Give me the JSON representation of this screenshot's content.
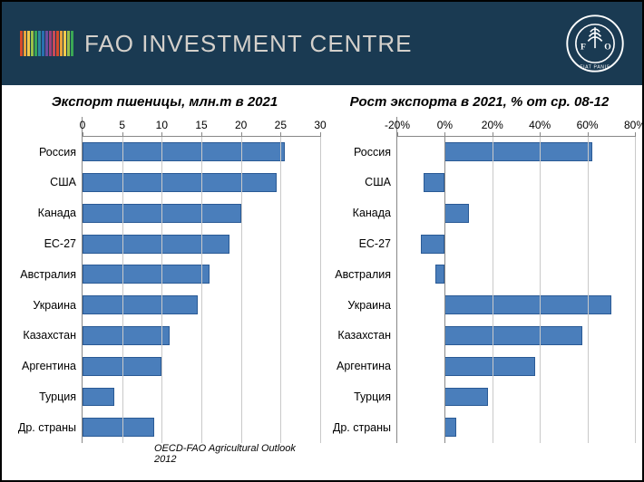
{
  "header": {
    "title": "FAO INVESTMENT CENTRE",
    "bg_color": "#1a3a52",
    "title_color": "#d4d0cb",
    "stripe_colors": [
      "#d64a2a",
      "#e8a33c",
      "#f2c94c",
      "#9ac148",
      "#3aa655",
      "#2b8aa0",
      "#2a6fb0",
      "#6a4fa0",
      "#a0407a",
      "#c94a5a",
      "#d64a2a",
      "#e8a33c",
      "#f2c94c",
      "#9ac148",
      "#3aa655"
    ]
  },
  "chart_left": {
    "type": "bar-horizontal",
    "title": "Экспорт пшеницы, млн.т в 2021",
    "xmin": 0,
    "xmax": 30,
    "xstep": 5,
    "categories": [
      "Россия",
      "США",
      "Канада",
      "ЕС-27",
      "Австралия",
      "Украина",
      "Казахстан",
      "Аргентина",
      "Турция",
      "Др. страны"
    ],
    "values": [
      25.5,
      24.5,
      20,
      18.5,
      16,
      14.5,
      11,
      10,
      4,
      9
    ],
    "bar_color": "#4a7ebb",
    "bar_border": "#2a5a95",
    "grid_color": "#c9c9c9",
    "title_fontsize": 15,
    "label_fontsize": 12.5,
    "tick_fontsize": 12
  },
  "chart_right": {
    "type": "bar-horizontal",
    "title": "Рост экспорта в 2021, % от ср. 08-12",
    "xmin": -20,
    "xmax": 80,
    "xstep": 20,
    "tick_suffix": "%",
    "zero_baseline": true,
    "categories": [
      "Россия",
      "США",
      "Канада",
      "ЕС-27",
      "Австралия",
      "Украина",
      "Казахстан",
      "Аргентина",
      "Турция",
      "Др. страны"
    ],
    "values": [
      62,
      -9,
      10,
      -10,
      -4,
      70,
      58,
      38,
      18,
      5
    ],
    "bar_color": "#4a7ebb",
    "bar_border": "#2a5a95",
    "grid_color": "#c9c9c9",
    "title_fontsize": 15,
    "label_fontsize": 12.5,
    "tick_fontsize": 12
  },
  "footnote": "OECD-FAO Agricultural Outlook 2012"
}
